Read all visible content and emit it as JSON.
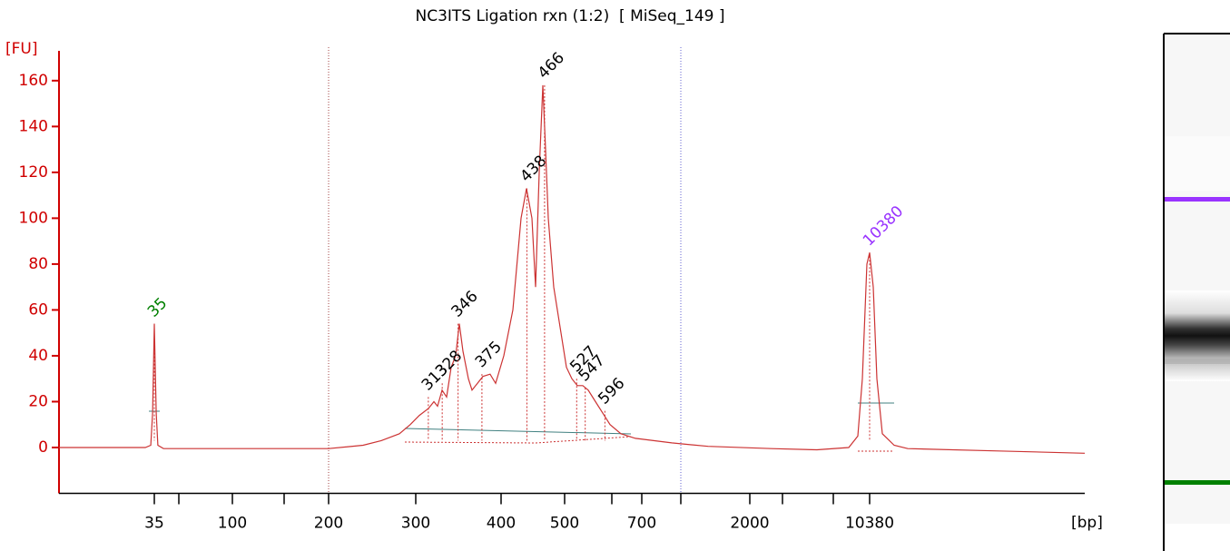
{
  "chart_data": {
    "type": "line",
    "title": "NC3ITS Ligation rxn (1:2)  [ MiSeq_149 ]",
    "y_label": "[FU]",
    "x_label": "[bp]",
    "color": "#cc3333",
    "axis_color": "#d00000",
    "ylim": [
      -20,
      173
    ],
    "yticks": [
      0,
      20,
      40,
      60,
      80,
      100,
      120,
      140,
      160
    ],
    "xlim": [
      10,
      200000
    ],
    "xticks": [
      35,
      100,
      200,
      300,
      400,
      500,
      700,
      2000,
      10380
    ],
    "x": [
      10,
      31.1,
      33.4,
      34.2,
      35,
      35.9,
      36.7,
      39.6,
      92.9,
      200,
      234.8,
      255.5,
      278,
      292.5,
      303.7,
      313.1,
      318.9,
      322.9,
      327.8,
      332.9,
      338,
      343.2,
      347.5,
      351.7,
      358.3,
      362.7,
      369.4,
      376.2,
      385.5,
      392.7,
      403.8,
      416.9,
      429.1,
      437.3,
      445.8,
      451.5,
      457.3,
      463.2,
      467.6,
      472.1,
      481.2,
      493.7,
      504,
      516.1,
      528.5,
      541.2,
      554.2,
      572,
      590.5,
      609.5,
      639.1,
      680.9,
      936.5,
      1333,
      2698,
      5034,
      7790,
      8825,
      9395,
      10000,
      10380,
      10911,
      11470,
      12360,
      14540,
      17530,
      61060,
      200000
    ],
    "values": [
      0,
      0,
      1,
      15,
      54,
      15,
      1,
      -0.5,
      -0.5,
      -0.5,
      1,
      3,
      6,
      10,
      14,
      17,
      20,
      18,
      25,
      22,
      35,
      40,
      54,
      42,
      30,
      25,
      28,
      31,
      32,
      28,
      40,
      60,
      100,
      113,
      100,
      70,
      120,
      158,
      130,
      100,
      70,
      50,
      35,
      30,
      27,
      27,
      25,
      20,
      15,
      10,
      6,
      4,
      2,
      0.5,
      -0.5,
      -1,
      0,
      5,
      30,
      80,
      85,
      70,
      30,
      6,
      1,
      -0.5,
      -1.5,
      -2.5
    ],
    "peaks": [
      {
        "size": 35,
        "value": 54,
        "color": "#008000"
      },
      {
        "size": 313,
        "value": 22,
        "color": "#000000"
      },
      {
        "size": 328,
        "value": 28,
        "color": "#000000"
      },
      {
        "size": 346,
        "value": 54,
        "color": "#000000"
      },
      {
        "size": 375,
        "value": 32,
        "color": "#000000"
      },
      {
        "size": 438,
        "value": 113,
        "color": "#000000"
      },
      {
        "size": 466,
        "value": 158,
        "color": "#000000"
      },
      {
        "size": 527,
        "value": 30,
        "color": "#000000"
      },
      {
        "size": 547,
        "value": 26,
        "color": "#000000"
      },
      {
        "size": 596,
        "value": 16,
        "color": "#000000"
      },
      {
        "size": 10380,
        "value": 85,
        "color": "#9933ff"
      }
    ]
  }
}
